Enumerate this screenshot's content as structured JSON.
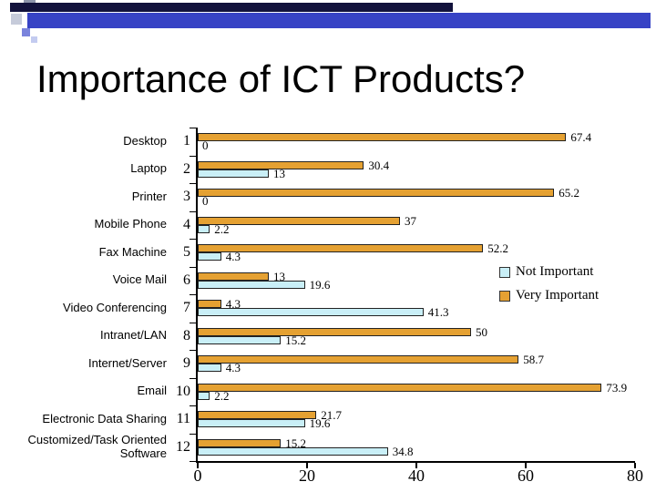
{
  "slide": {
    "title": "Importance of ICT Products?"
  },
  "legend": {
    "items": [
      {
        "label": "Not Important",
        "color": "#C9EFF7"
      },
      {
        "label": "Very Important",
        "color": "#E5A132"
      }
    ]
  },
  "chart_data": {
    "type": "bar",
    "orientation": "horizontal",
    "title": "Importance of ICT Products?",
    "xlabel": "",
    "ylabel": "",
    "xlim": [
      0,
      80
    ],
    "x_ticks": [
      0,
      20,
      40,
      60,
      80
    ],
    "grid": false,
    "legend_position": "right",
    "categories": [
      "Desktop",
      "Laptop",
      "Printer",
      "Mobile Phone",
      "Fax Machine",
      "Voice Mail",
      "Video Conferencing",
      "Intranet/LAN",
      "Internet/Server",
      "Email",
      "Electronic Data Sharing",
      "Customized/Task Oriented Software"
    ],
    "category_numbers": [
      "1",
      "2",
      "3",
      "4",
      "5",
      "6",
      "7",
      "8",
      "9",
      "10",
      "11",
      "12"
    ],
    "series": [
      {
        "name": "Very Important",
        "color": "#E5A132",
        "values": [
          67.4,
          30.4,
          65.2,
          37,
          52.2,
          13,
          4.3,
          50,
          58.7,
          73.9,
          21.7,
          15.2
        ]
      },
      {
        "name": "Not Important",
        "color": "#C9EFF7",
        "values": [
          0,
          13,
          0,
          2.2,
          4.3,
          19.6,
          41.3,
          15.2,
          4.3,
          2.2,
          19.6,
          34.8
        ]
      }
    ]
  }
}
